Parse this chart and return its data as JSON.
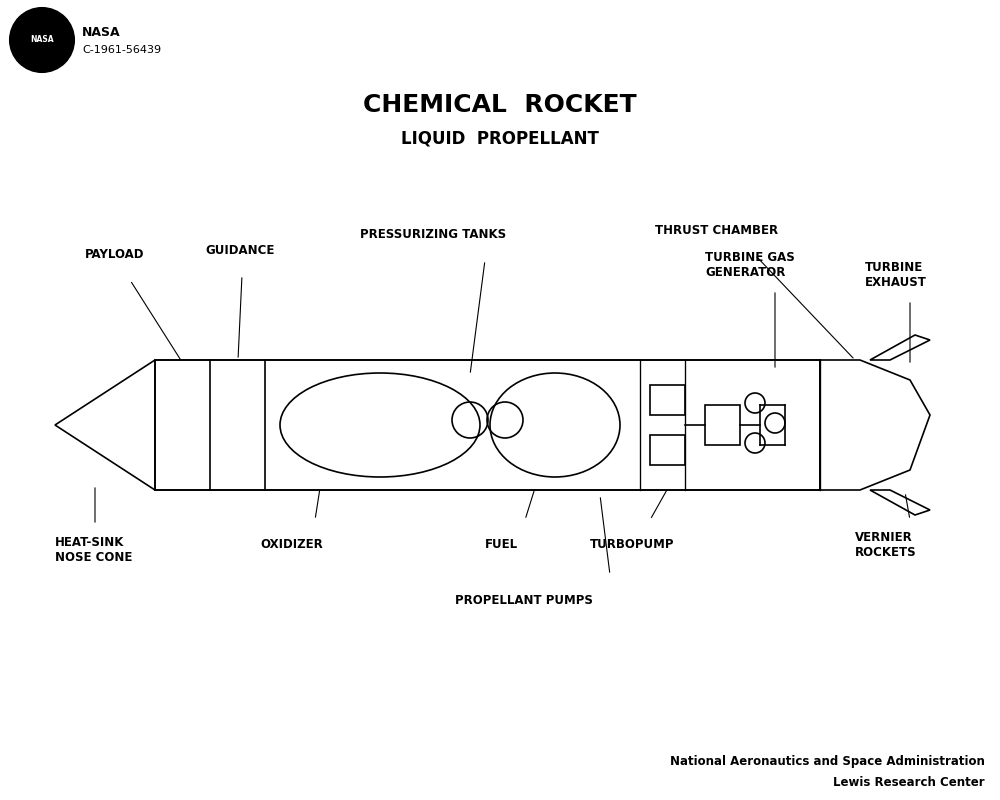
{
  "title1": "CHEMICAL  ROCKET",
  "title2": "LIQUID  PROPELLANT",
  "nasa_text": "NASA\nC-1961-56439",
  "footer1": "National Aeronautics and Space Administration",
  "footer2": "Lewis Research Center",
  "bg_color": "#ffffff",
  "line_color": "#000000",
  "labels": {
    "payload": "PAYLOAD",
    "guidance": "GUIDANCE",
    "pressurizing_tanks": "PRESSURIZING TANKS",
    "thrust_chamber": "THRUST CHAMBER",
    "turbine_gas_generator": "TURBINE GAS\nGENERATOR",
    "turbine_exhaust": "TURBINE\nEXHAUST",
    "heat_sink_nose_cone": "HEAT-SINK\nNOSE CONE",
    "oxidizer": "OXIDIZER",
    "fuel": "FUEL",
    "turbopump": "TURBOPUMP",
    "vernier_rockets": "VERNIER\nROCKETS",
    "propellant_pumps": "PROPELLANT PUMPS"
  }
}
